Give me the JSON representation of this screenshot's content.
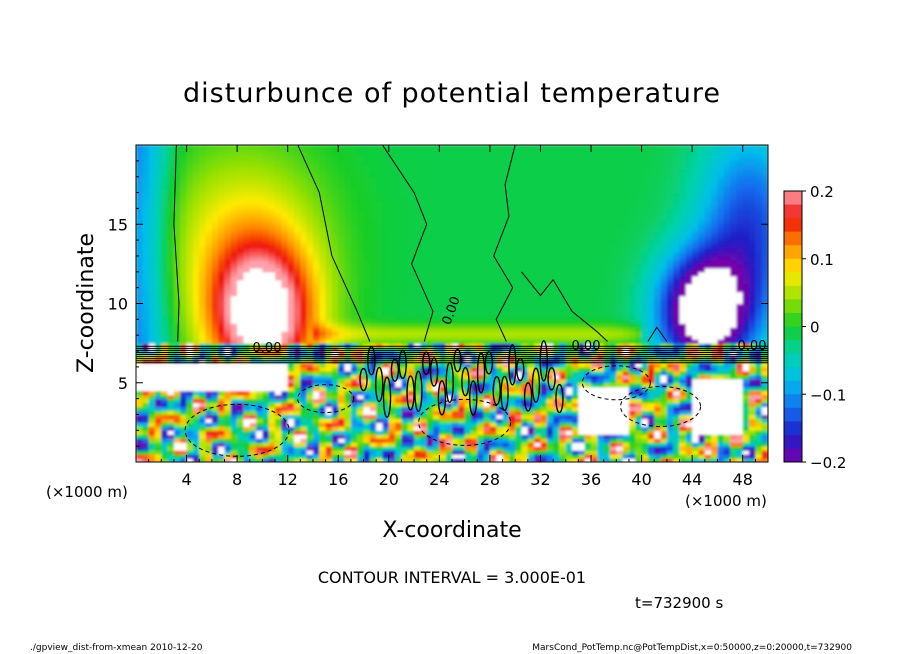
{
  "chart_data": {
    "type": "heatmap",
    "title": "disturbunce of potential temperature",
    "xlabel": "X-coordinate",
    "ylabel": "Z-coordinate",
    "x_unit_left": "(×1000 m)",
    "x_unit_right": "(×1000 m)",
    "x_ticks": [
      4,
      8,
      12,
      16,
      20,
      24,
      28,
      32,
      36,
      40,
      44,
      48
    ],
    "y_ticks": [
      5,
      10,
      15
    ],
    "xlim": [
      0,
      50
    ],
    "ylim": [
      0,
      20
    ],
    "colorbar": {
      "ticks": [
        0.2,
        0.1,
        0,
        -0.1,
        -0.2
      ],
      "tick_labels": [
        "0.2",
        "0.1",
        "0",
        "−0.1",
        "−0.2"
      ],
      "range": [
        -0.2,
        0.2
      ]
    },
    "contour_labels": [
      "0.00",
      "0.00",
      "0.00",
      "0.00"
    ],
    "contour_interval_text": "CONTOUR INTERVAL = 3.000E-01",
    "time_text": "t=732900 s",
    "footer_left": "./gpview_dist-from-xmean   2010-12-20",
    "footer_right": "MarsCond_PotTemp.nc@PotTempDist,x=0:50000,z=0:20000,t=732900",
    "features": [
      {
        "x": 10,
        "z": 13.5,
        "value": 0.2
      },
      {
        "x": 45,
        "z": 10,
        "value": -0.2
      },
      {
        "x": 27,
        "z": 12,
        "value": -0.01
      }
    ]
  }
}
